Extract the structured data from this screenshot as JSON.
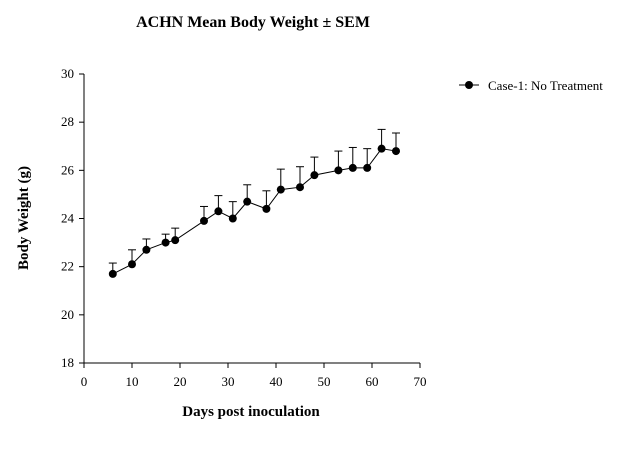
{
  "chart_data": {
    "type": "line",
    "title": "ACHN Mean Body Weight ± SEM",
    "xlabel": "Days post inoculation",
    "ylabel": "Body Weight (g)",
    "xlim": [
      0,
      70
    ],
    "ylim": [
      18,
      30
    ],
    "xticks": [
      0,
      10,
      20,
      30,
      40,
      50,
      60,
      70
    ],
    "yticks": [
      18,
      20,
      22,
      24,
      26,
      28,
      30
    ],
    "grid": false,
    "legend_position": "top-right",
    "error_bars": "upper SEM",
    "series": [
      {
        "name": "Case-1: No Treatment",
        "color": "#000000",
        "marker": "filled-circle",
        "x": [
          6,
          10,
          13,
          17,
          19,
          25,
          28,
          31,
          34,
          38,
          41,
          45,
          48,
          53,
          56,
          59,
          62,
          65
        ],
        "y": [
          21.7,
          22.1,
          22.7,
          23.0,
          23.1,
          23.9,
          24.3,
          24.0,
          24.7,
          24.4,
          25.2,
          25.3,
          25.8,
          26.0,
          26.1,
          26.1,
          26.9,
          26.8
        ],
        "sem": [
          0.45,
          0.6,
          0.45,
          0.35,
          0.5,
          0.6,
          0.65,
          0.7,
          0.7,
          0.75,
          0.85,
          0.85,
          0.75,
          0.8,
          0.85,
          0.8,
          0.8,
          0.75
        ]
      }
    ]
  }
}
